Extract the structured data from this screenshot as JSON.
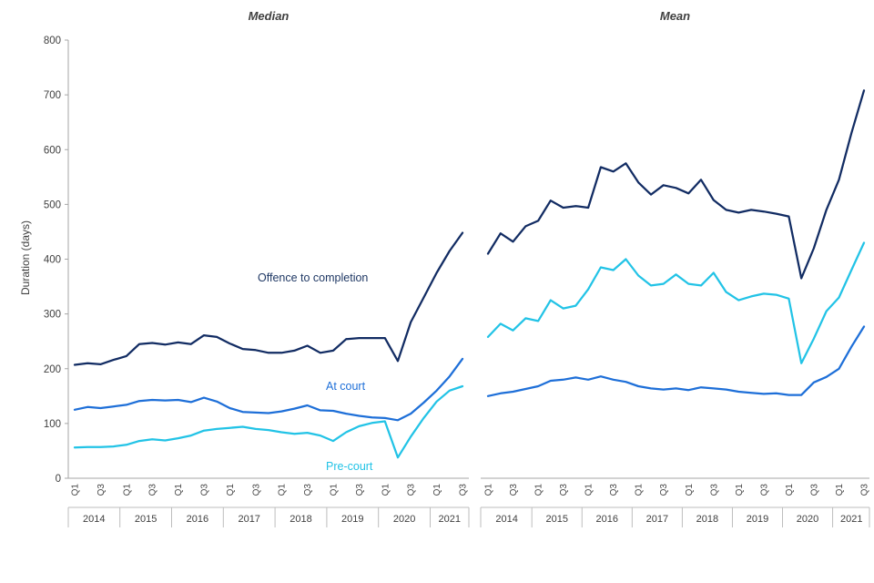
{
  "figure": {
    "y_axis_label": "Duration (days)",
    "background": "#ffffff"
  },
  "colors": {
    "axis_line": "#a6a6a6",
    "band_line": "#bdbdbd",
    "tick_text": "#404040",
    "title_text": "#404040",
    "axis_label_text": "#404040",
    "offence_to_completion": "#122c63",
    "at_court": "#1e6fd8",
    "pre_court": "#22c3e6"
  },
  "axes": {
    "y": {
      "min": 0,
      "max": 800,
      "step": 100
    },
    "quarter_labels_shown": [
      "Q1",
      "Q3"
    ],
    "years": [
      "2014",
      "2015",
      "2016",
      "2017",
      "2018",
      "2019",
      "2020",
      "2021"
    ]
  },
  "annotations": {
    "offence": {
      "text": "Offence to completion",
      "color": "#1f3864"
    },
    "at_court": {
      "text": "At court",
      "color": "#1e6fd8"
    },
    "pre_court": {
      "text": "Pre-court",
      "color": "#22c3e6"
    }
  },
  "chart_data": [
    {
      "type": "line",
      "title": "Median",
      "ylabel": "Duration (days)",
      "ylim": [
        0,
        800
      ],
      "grid": false,
      "legend_position": "inline-annotations",
      "x": [
        "2014 Q1",
        "2014 Q2",
        "2014 Q3",
        "2014 Q4",
        "2015 Q1",
        "2015 Q2",
        "2015 Q3",
        "2015 Q4",
        "2016 Q1",
        "2016 Q2",
        "2016 Q3",
        "2016 Q4",
        "2017 Q1",
        "2017 Q2",
        "2017 Q3",
        "2017 Q4",
        "2018 Q1",
        "2018 Q2",
        "2018 Q3",
        "2018 Q4",
        "2019 Q1",
        "2019 Q2",
        "2019 Q3",
        "2019 Q4",
        "2020 Q1",
        "2020 Q2",
        "2020 Q3",
        "2020 Q4",
        "2021 Q1",
        "2021 Q2",
        "2021 Q3"
      ],
      "series": [
        {
          "name": "Offence to completion",
          "color": "#122c63",
          "values": [
            207,
            210,
            208,
            216,
            223,
            245,
            247,
            244,
            248,
            245,
            261,
            258,
            246,
            236,
            234,
            229,
            229,
            233,
            242,
            229,
            233,
            254,
            256,
            256,
            256,
            214,
            285,
            330,
            375,
            415,
            448
          ]
        },
        {
          "name": "At court",
          "color": "#1e6fd8",
          "values": [
            125,
            130,
            128,
            131,
            134,
            141,
            143,
            142,
            143,
            139,
            147,
            140,
            128,
            121,
            120,
            119,
            122,
            127,
            133,
            124,
            123,
            118,
            114,
            111,
            110,
            106,
            118,
            138,
            160,
            186,
            218
          ]
        },
        {
          "name": "Pre-court",
          "color": "#22c3e6",
          "values": [
            56,
            57,
            57,
            58,
            61,
            68,
            71,
            69,
            73,
            78,
            87,
            90,
            92,
            94,
            90,
            88,
            84,
            81,
            83,
            78,
            68,
            84,
            95,
            101,
            104,
            38,
            76,
            110,
            140,
            160,
            168
          ]
        }
      ]
    },
    {
      "type": "line",
      "title": "Mean",
      "ylabel": "Duration (days)",
      "ylim": [
        0,
        800
      ],
      "grid": false,
      "legend_position": "none",
      "x": [
        "2014 Q1",
        "2014 Q2",
        "2014 Q3",
        "2014 Q4",
        "2015 Q1",
        "2015 Q2",
        "2015 Q3",
        "2015 Q4",
        "2016 Q1",
        "2016 Q2",
        "2016 Q3",
        "2016 Q4",
        "2017 Q1",
        "2017 Q2",
        "2017 Q3",
        "2017 Q4",
        "2018 Q1",
        "2018 Q2",
        "2018 Q3",
        "2018 Q4",
        "2019 Q1",
        "2019 Q2",
        "2019 Q3",
        "2019 Q4",
        "2020 Q1",
        "2020 Q2",
        "2020 Q3",
        "2020 Q4",
        "2021 Q1",
        "2021 Q2",
        "2021 Q3"
      ],
      "series": [
        {
          "name": "Offence to completion",
          "color": "#122c63",
          "values": [
            410,
            447,
            432,
            460,
            470,
            507,
            494,
            497,
            494,
            568,
            560,
            575,
            540,
            518,
            535,
            530,
            520,
            545,
            508,
            490,
            485,
            490,
            487,
            483,
            478,
            365,
            420,
            490,
            545,
            630,
            708
          ]
        },
        {
          "name": "Pre-court",
          "color": "#22c3e6",
          "values": [
            258,
            282,
            270,
            292,
            287,
            325,
            310,
            315,
            345,
            385,
            380,
            400,
            370,
            352,
            355,
            372,
            355,
            352,
            375,
            340,
            325,
            332,
            337,
            335,
            328,
            210,
            255,
            305,
            330,
            380,
            430
          ]
        },
        {
          "name": "At court",
          "color": "#1e6fd8",
          "values": [
            150,
            155,
            158,
            163,
            168,
            178,
            180,
            184,
            180,
            186,
            180,
            176,
            168,
            164,
            162,
            164,
            161,
            166,
            164,
            162,
            158,
            156,
            154,
            155,
            152,
            152,
            175,
            185,
            200,
            240,
            277
          ]
        }
      ]
    }
  ]
}
